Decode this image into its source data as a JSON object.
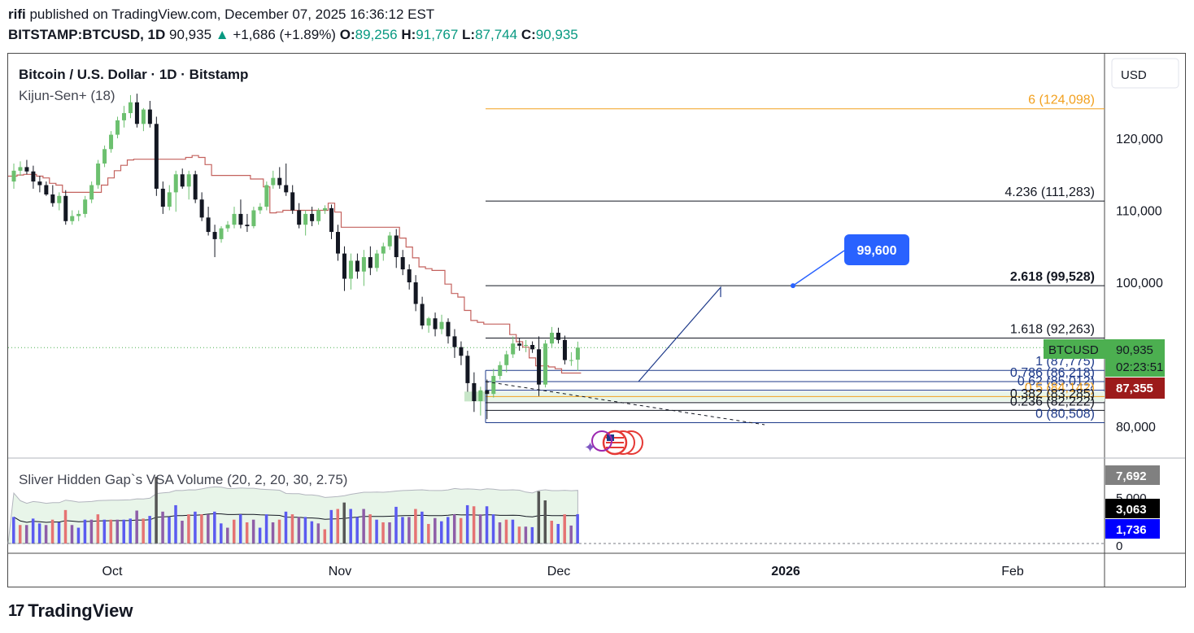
{
  "header": {
    "line1_user": "rifi",
    "line1_rest": " published on TradingView.com, December 07, 2025 16:36:12 EST",
    "symbol": "BITSTAMP:BTCUSD, 1D",
    "price": "90,935",
    "change_arrow": "▲",
    "change": "+1,686 (+1.89%)",
    "o_label": "O:",
    "o_val": "89,256",
    "h_label": "H:",
    "h_val": "91,767",
    "l_label": "L:",
    "l_val": "87,744",
    "c_label": "C:",
    "c_val": "90,935"
  },
  "legend": {
    "title": "Bitcoin / U.S. Dollar · 1D · Bitstamp",
    "indicator": "Kijun-Sen+ (18)",
    "volume_indicator": "Sliver Hidden Gap`s VSA Volume (20, 2, 20, 30, 2.75)"
  },
  "currency_button": "USD",
  "price_scale": {
    "ticks": [
      "120,000",
      "110,000",
      "100,000",
      "80,000"
    ],
    "last_price": "90,935",
    "last_price_symbol": "BTCUSD",
    "countdown": "02:23:51",
    "kijun_value": "87,355"
  },
  "volume_scale": {
    "tick_5000": "5,000",
    "tick_0": "0",
    "badge_max": "7,692",
    "badge_ma": "3,063",
    "badge_last": "1,736"
  },
  "time_axis": [
    "Oct",
    "Nov",
    "Dec",
    "2026",
    "Feb"
  ],
  "fib_levels": [
    {
      "label": "6 (124,098)",
      "price": 124098,
      "color": "#f2a01e"
    },
    {
      "label": "4.236 (111,283)",
      "price": 111283,
      "color": "#131722"
    },
    {
      "label": "2.618 (99,528)",
      "price": 99528,
      "color": "#131722",
      "bold": true
    },
    {
      "label": "1.618 (92,263)",
      "price": 92263,
      "color": "#131722"
    },
    {
      "label": "1 (87,775)",
      "price": 87775,
      "color": "#1e3a8a"
    },
    {
      "label": "0.786 (86,218)",
      "price": 86218,
      "color": "#1e3a8a"
    },
    {
      "label": "0.62 (85,012)",
      "price": 85012,
      "color": "#1e3a8a"
    },
    {
      "label": "0.5 (84,142)",
      "price": 84142,
      "color": "#f2a01e"
    },
    {
      "label": "0.382 (83,285)",
      "price": 83285,
      "color": "#131722"
    },
    {
      "label": "0.236 (82,222)",
      "price": 82222,
      "color": "#131722"
    },
    {
      "label": "0 (80,508)",
      "price": 80508,
      "color": "#1e3a8a"
    }
  ],
  "target_callout": "99,600",
  "footer_brand": "TradingView",
  "colors": {
    "up": "#6cc06f",
    "down": "#131722",
    "kijun": "#c4625e",
    "callout": "#2962ff",
    "last_price_bg": "#4caf50",
    "kijun_badge_bg": "#9c1b1b"
  },
  "chart_data": {
    "type": "candlestick",
    "title": "Bitcoin / U.S. Dollar · 1D · Bitstamp",
    "x_labels": [
      "Oct",
      "Nov",
      "Dec",
      "2026",
      "Feb"
    ],
    "ylim": [
      77000,
      130000
    ],
    "ohlc": [
      [
        114000,
        116500,
        113000,
        115500
      ],
      [
        115500,
        116800,
        114800,
        116000
      ],
      [
        116000,
        117000,
        115000,
        115400
      ],
      [
        115400,
        116200,
        113000,
        114000
      ],
      [
        114000,
        114800,
        112500,
        113500
      ],
      [
        113500,
        114000,
        112000,
        112200
      ],
      [
        112200,
        113500,
        110500,
        111000
      ],
      [
        111000,
        112500,
        110000,
        112000
      ],
      [
        112000,
        112800,
        108000,
        108500
      ],
      [
        108500,
        110000,
        108000,
        109200
      ],
      [
        109200,
        110000,
        108500,
        109500
      ],
      [
        109500,
        112000,
        109000,
        111500
      ],
      [
        111500,
        114000,
        111000,
        113500
      ],
      [
        113500,
        117000,
        113000,
        116500
      ],
      [
        116500,
        119000,
        116000,
        118500
      ],
      [
        118500,
        121000,
        118000,
        120500
      ],
      [
        120500,
        123000,
        120000,
        122500
      ],
      [
        122500,
        124500,
        121500,
        123500
      ],
      [
        123500,
        126000,
        122800,
        125000
      ],
      [
        125000,
        126200,
        121500,
        122000
      ],
      [
        122000,
        124200,
        121000,
        124000
      ],
      [
        124000,
        125200,
        121500,
        122000
      ],
      [
        122000,
        123000,
        112000,
        113000
      ],
      [
        113000,
        114000,
        109500,
        110500
      ],
      [
        110500,
        113500,
        110000,
        112500
      ],
      [
        112500,
        115500,
        109800,
        115000
      ],
      [
        115000,
        115800,
        113000,
        113300
      ],
      [
        113300,
        115500,
        111500,
        115000
      ],
      [
        115000,
        115500,
        111000,
        111500
      ],
      [
        111500,
        112500,
        108500,
        109000
      ],
      [
        109000,
        110500,
        106500,
        107000
      ],
      [
        107000,
        108000,
        103500,
        106000
      ],
      [
        106000,
        107800,
        105500,
        107500
      ],
      [
        107500,
        108500,
        107000,
        108000
      ],
      [
        108000,
        110500,
        107500,
        109500
      ],
      [
        109500,
        111500,
        107500,
        108000
      ],
      [
        108000,
        109500,
        107000,
        107800
      ],
      [
        107800,
        110500,
        107500,
        110000
      ],
      [
        110000,
        111000,
        109500,
        110500
      ],
      [
        110500,
        114000,
        110000,
        113500
      ],
      [
        113500,
        115500,
        113000,
        114500
      ],
      [
        114500,
        116000,
        113000,
        113500
      ],
      [
        113500,
        116500,
        112000,
        112500
      ],
      [
        112500,
        113500,
        109500,
        110000
      ],
      [
        110000,
        111000,
        107500,
        108000
      ],
      [
        108000,
        110000,
        106500,
        109500
      ],
      [
        109500,
        110500,
        107800,
        108500
      ],
      [
        108500,
        110300,
        108000,
        110000
      ],
      [
        110000,
        110700,
        109500,
        110300
      ],
      [
        110300,
        110800,
        106000,
        107000
      ],
      [
        107000,
        108000,
        103000,
        104000
      ],
      [
        104000,
        105000,
        98800,
        100500
      ],
      [
        100500,
        104000,
        99000,
        103000
      ],
      [
        103000,
        104000,
        100500,
        101500
      ],
      [
        101500,
        104500,
        99500,
        103500
      ],
      [
        103500,
        105000,
        101000,
        102000
      ],
      [
        102000,
        104500,
        101500,
        104000
      ],
      [
        104000,
        105500,
        103000,
        105000
      ],
      [
        105000,
        107000,
        104500,
        106500
      ],
      [
        106500,
        107400,
        102000,
        103500
      ],
      [
        103500,
        104500,
        101000,
        101800
      ],
      [
        101800,
        102500,
        99000,
        100000
      ],
      [
        100000,
        101000,
        96000,
        97000
      ],
      [
        97000,
        98000,
        93500,
        94000
      ],
      [
        94000,
        95200,
        93000,
        95000
      ],
      [
        95000,
        95800,
        92500,
        93500
      ],
      [
        93500,
        95500,
        92800,
        94500
      ],
      [
        94500,
        95000,
        91500,
        92500
      ],
      [
        92500,
        93500,
        89500,
        91000
      ],
      [
        91000,
        91800,
        88500,
        89800
      ],
      [
        89800,
        90500,
        84800,
        86000
      ],
      [
        86000,
        87500,
        82000,
        83500
      ],
      [
        83500,
        85500,
        81500,
        85000
      ],
      [
        85000,
        86500,
        81000,
        84500
      ],
      [
        84500,
        88000,
        84000,
        87000
      ],
      [
        87000,
        89000,
        86500,
        88500
      ],
      [
        88500,
        90500,
        87500,
        90000
      ],
      [
        90000,
        92500,
        89500,
        91500
      ],
      [
        91500,
        92200,
        90500,
        91200
      ],
      [
        91200,
        92000,
        90300,
        91300
      ],
      [
        91300,
        91800,
        90200,
        90700
      ],
      [
        90700,
        92500,
        84200,
        85800
      ],
      [
        85800,
        92000,
        85400,
        91500
      ],
      [
        91500,
        93800,
        91000,
        93000
      ],
      [
        93000,
        93700,
        91500,
        92000
      ],
      [
        92000,
        92600,
        88600,
        89200
      ],
      [
        89200,
        90300,
        88400,
        89200
      ],
      [
        89256,
        91767,
        87744,
        90935
      ]
    ],
    "kijun_series_name": "Kijun-Sen+ (18)",
    "volume_series_name": "Sliver Hidden Gap`s VSA Volume (20, 2, 20, 30, 2.75)"
  }
}
